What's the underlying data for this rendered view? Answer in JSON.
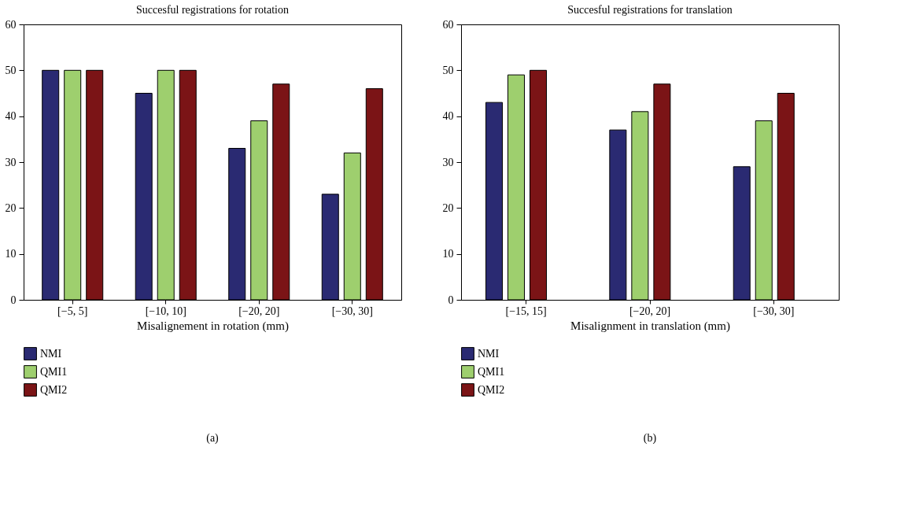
{
  "chart_data": [
    {
      "type": "bar",
      "title": "Succesful registrations for rotation",
      "xlabel": "Misalignement in rotation (mm)",
      "categories": [
        "[−5, 5]",
        "[−10, 10]",
        "[−20, 20]",
        "[−30, 30]"
      ],
      "series": [
        {
          "name": "NMI",
          "color": "#2a2a72",
          "values": [
            50,
            45,
            33,
            23
          ]
        },
        {
          "name": "QMI1",
          "color": "#9ecf6e",
          "values": [
            50,
            50,
            39,
            32
          ]
        },
        {
          "name": "QMI2",
          "color": "#7b1416",
          "values": [
            50,
            50,
            47,
            46
          ]
        }
      ],
      "ylim": [
        0,
        60
      ],
      "yticks": [
        0,
        10,
        20,
        30,
        40,
        50,
        60
      ],
      "grid": false,
      "legend": "bottom left",
      "annotations": [
        "(a)"
      ]
    },
    {
      "type": "bar",
      "title": "Succesful registrations for translation",
      "xlabel": "Misalignment in translation (mm)",
      "categories": [
        "[−15, 15]",
        "[−20, 20]",
        "[−30, 30]"
      ],
      "series": [
        {
          "name": "NMI",
          "color": "#2a2a72",
          "values": [
            43,
            37,
            29
          ]
        },
        {
          "name": "QMI1",
          "color": "#9ecf6e",
          "values": [
            49,
            41,
            39
          ]
        },
        {
          "name": "QMI2",
          "color": "#7b1416",
          "values": [
            50,
            47,
            45
          ]
        }
      ],
      "ylim": [
        0,
        60
      ],
      "yticks": [
        0,
        10,
        20,
        30,
        40,
        50,
        60
      ],
      "grid": false,
      "legend": "bottom left",
      "annotations": [
        "(b)"
      ]
    }
  ]
}
